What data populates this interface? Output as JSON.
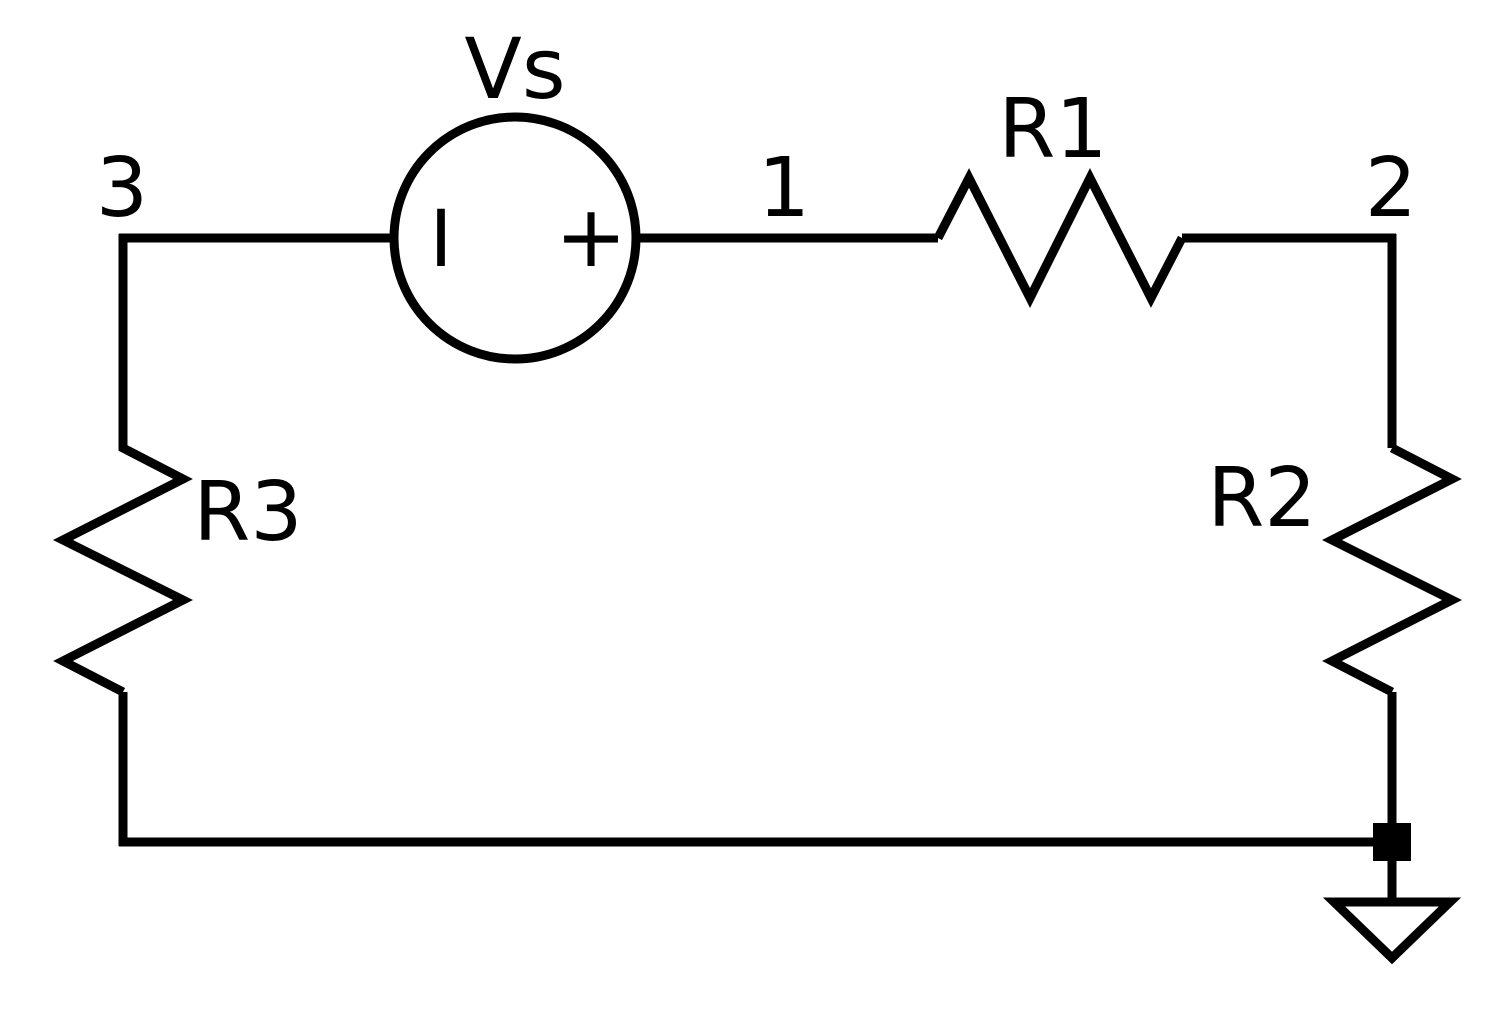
{
  "components": {
    "source": {
      "label": "Vs",
      "minus_sign": "I",
      "plus_sign": "+"
    },
    "r1": {
      "label": "R1"
    },
    "r2": {
      "label": "R2"
    },
    "r3": {
      "label": "R3"
    }
  },
  "nodes": {
    "n1": "1",
    "n2": "2",
    "n3": "3"
  },
  "colors": {
    "stroke": "#000000",
    "background": "#ffffff"
  },
  "icons": {
    "ground": "ground-symbol-icon",
    "junction": "junction-dot-icon"
  }
}
